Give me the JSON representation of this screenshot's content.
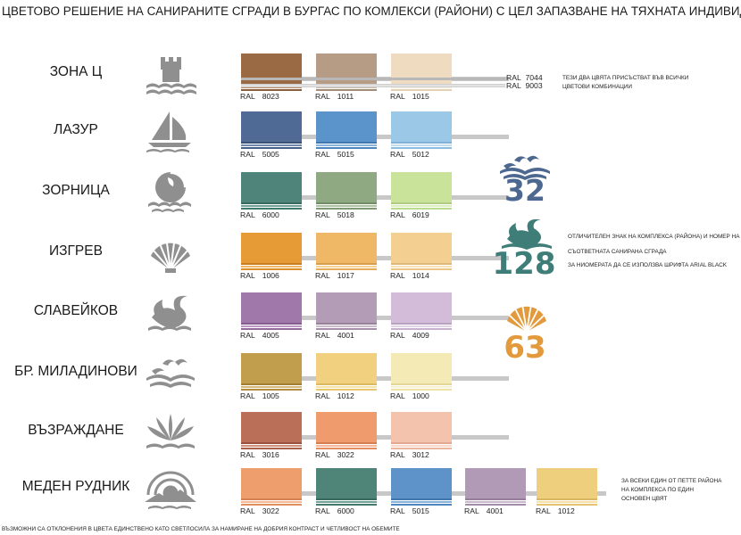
{
  "title": "ЦВЕТОВО РЕШЕНИЕ НА САНИРАНИТЕ СГРАДИ В БУРГАС ПО КОМЛЕКСИ (РАЙОНИ) С ЦЕЛ ЗАПАЗВАНЕ НА ТЯХНАТА ИНДИВИДУАЛНОСТ",
  "zones": [
    {
      "name": "ЗОНА Ц",
      "icon": "castle-tower-icon",
      "swatches": [
        {
          "code": "8023",
          "color": "#9a6a45",
          "stripes": [
            "#6f4a2e",
            "#b48a66",
            "#8a5d3c"
          ]
        },
        {
          "code": "1011",
          "color": "#b69c84",
          "stripes": [
            "#8f7963",
            "#cdb9a4",
            "#a38c75"
          ]
        },
        {
          "code": "1015",
          "color": "#efdcc0",
          "stripes": [
            "#d8c3a5",
            "#f6eadb",
            "#e4d0b4"
          ]
        }
      ]
    },
    {
      "name": "ЛАЗУР",
      "icon": "sailboat-icon",
      "swatches": [
        {
          "code": "5005",
          "color": "#4f6a94",
          "stripes": [
            "#3a5178",
            "#6f87ab",
            "#45608a"
          ]
        },
        {
          "code": "5015",
          "color": "#5b94cb",
          "stripes": [
            "#3f77ae",
            "#86b2dc",
            "#4d86bf"
          ]
        },
        {
          "code": "5012",
          "color": "#9bc8e7",
          "stripes": [
            "#7fb2d6",
            "#c0ddf0",
            "#8dbde0"
          ]
        }
      ]
    },
    {
      "name": "ЗОРНИЦА",
      "icon": "sun-waves-icon",
      "swatches": [
        {
          "code": "6000",
          "color": "#4e8479",
          "stripes": [
            "#386a60",
            "#72a196",
            "#437a6f"
          ]
        },
        {
          "code": "5018",
          "color": "#8fa982",
          "stripes": [
            "#738e66",
            "#aec3a3",
            "#809b74"
          ]
        },
        {
          "code": "6019",
          "color": "#c9e39a",
          "stripes": [
            "#b0cc82",
            "#dcefbf",
            "#bddc8d"
          ]
        }
      ]
    },
    {
      "name": "ИЗГРЕВ",
      "icon": "shell-icon",
      "swatches": [
        {
          "code": "1006",
          "color": "#e69b36",
          "stripes": [
            "#c97f20",
            "#f0b865",
            "#dc8e2a"
          ]
        },
        {
          "code": "1017",
          "color": "#efb867",
          "stripes": [
            "#d99e4b",
            "#f6d295",
            "#e7ac58"
          ]
        },
        {
          "code": "1014",
          "color": "#f3d092",
          "stripes": [
            "#e0b978",
            "#f8e2b8",
            "#ecc685"
          ]
        }
      ]
    },
    {
      "name": "СЛАВЕЙКОВ",
      "icon": "swan-icon",
      "swatches": [
        {
          "code": "4005",
          "color": "#a079aa",
          "stripes": [
            "#835d8e",
            "#bb9ac3",
            "#93699e"
          ]
        },
        {
          "code": "4001",
          "color": "#b39cb6",
          "stripes": [
            "#987f9b",
            "#ccbacd",
            "#a78fab"
          ]
        },
        {
          "code": "4009",
          "color": "#d2bcd9",
          "stripes": [
            "#b9a2c1",
            "#e2d3e7",
            "#c8b0cf"
          ]
        }
      ]
    },
    {
      "name": "БР. МИЛАДИНОВИ",
      "icon": "birds-waves-icon",
      "swatches": [
        {
          "code": "1005",
          "color": "#c19d4e",
          "stripes": [
            "#a07f33",
            "#d6b978",
            "#b18e40"
          ]
        },
        {
          "code": "1012",
          "color": "#f1d17f",
          "stripes": [
            "#dcb860",
            "#f7e2a8",
            "#e8c670"
          ]
        },
        {
          "code": "1000",
          "color": "#f4eab5",
          "stripes": [
            "#e3d697",
            "#f9f2d2",
            "#eee1a5"
          ]
        }
      ]
    },
    {
      "name": "ВЪЗРАЖДАНЕ",
      "icon": "palm-fan-icon",
      "swatches": [
        {
          "code": "3016",
          "color": "#b96f58",
          "stripes": [
            "#98523d",
            "#d1917d",
            "#aa624b"
          ]
        },
        {
          "code": "3022",
          "color": "#ef9b6e",
          "stripes": [
            "#d57e52",
            "#f6b898",
            "#e58e61"
          ]
        },
        {
          "code": "3012",
          "color": "#f4c3ae",
          "stripes": [
            "#e2a891",
            "#f9d8ca",
            "#ecb7a1"
          ]
        }
      ]
    },
    {
      "name": "МЕДЕН РУДНИК",
      "icon": "mountain-sun-icon",
      "swatches": [
        {
          "code": "3022",
          "color": "#ee9d6d",
          "stripes": [
            "#d48153",
            "#f5b993",
            "#e28f60"
          ]
        },
        {
          "code": "6000",
          "color": "#4f8479",
          "stripes": [
            "#386a60",
            "#72a196",
            "#437a6f"
          ]
        },
        {
          "code": "5015",
          "color": "#5d93c9",
          "stripes": [
            "#4277ad",
            "#88b2db",
            "#5086bd"
          ]
        },
        {
          "code": "4001",
          "color": "#b09ab5",
          "stripes": [
            "#967e9b",
            "#c9b7cd",
            "#a48dab"
          ]
        },
        {
          "code": "1012",
          "color": "#eecf7e",
          "stripes": [
            "#d9b660",
            "#f5e1a8",
            "#e5c46f"
          ]
        }
      ]
    }
  ],
  "ral_prefix": "RAL",
  "common_colors": {
    "code1": "7044",
    "code2": "9003",
    "swatch1": "#bdbab1",
    "swatch2": "#f4f4f2"
  },
  "note_common": [
    "ТЕЗИ ДВА ЦВЯТА ПРИСЪСТВАТ ВЪВ ВСИЧКИ",
    "ЦВЕТОВИ КОМБИНАЦИИ"
  ],
  "sign_numbers": [
    {
      "value": "32",
      "color": "#4d6890"
    },
    {
      "value": "128",
      "color": "#3f7e78"
    },
    {
      "value": "63",
      "color": "#e39a3c"
    }
  ],
  "note_sign": [
    "ОТЛИЧИТЕЛЕН ЗНАК НА КОМПЛЕКСА (РАЙОНА) И НОМЕР НА",
    "СЪОТВЕТНАТА САНИРАНА СГРАДА",
    "ЗА НИОМЕРАТА ДА СЕ ИЗПОЛЗВА ШРИФТА ARIAL BLACK"
  ],
  "note_meden": [
    "ЗА ВСЕКИ ЕДИН ОТ ПЕТТЕ РАЙОНА",
    "НА КОМПЛЕКСА ПО ЕДИН",
    "ОСНОВЕН ЦВЯТ"
  ],
  "footer": "ВЪЗМОЖНИ СА ОТКЛОНЕНИЯ В ЦВЕТА ЕДИНСТВЕНО КАТО СВЕТЛОСИЛА ЗА НАМИРАНЕ НА ДОБРИЯ КОНТРАСТ И ЧЕТЛИВОСТ НА ОБЕМИТЕ"
}
